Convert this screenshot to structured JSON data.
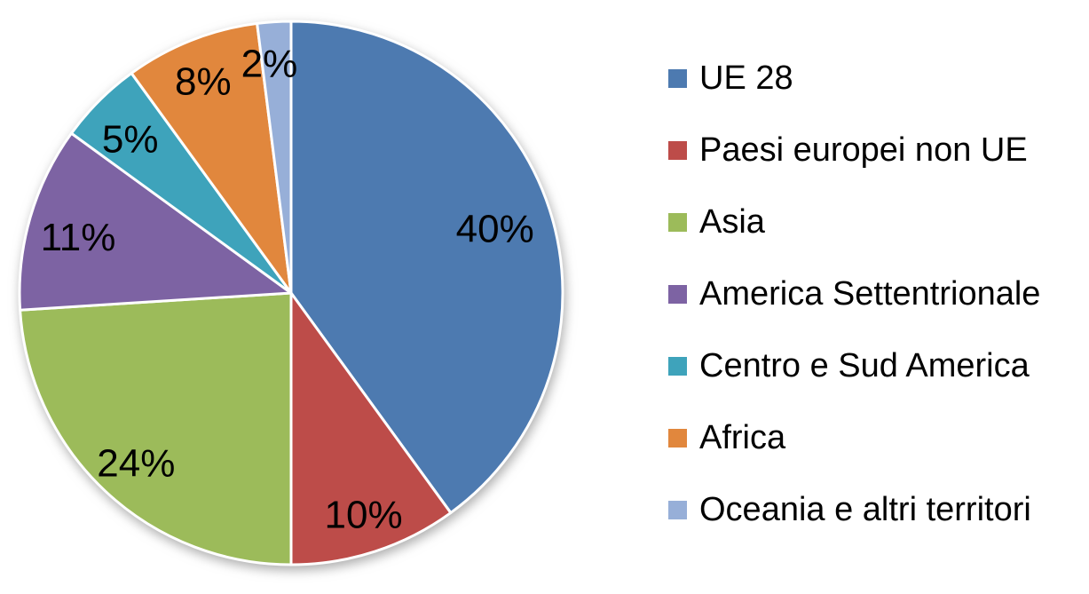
{
  "chart_data": {
    "type": "pie",
    "title": "",
    "categories": [
      "UE 28",
      "Paesi europei non UE",
      "Asia",
      "America Settentrionale",
      "Centro e Sud America",
      "Africa",
      "Oceania e altri territori"
    ],
    "values": [
      40,
      10,
      24,
      11,
      5,
      8,
      2
    ],
    "unit": "%",
    "percent_labels": [
      "40%",
      "10%",
      "24%",
      "11%",
      "5%",
      "8%",
      "2%"
    ],
    "colors": [
      "#4d7ab0",
      "#bd4c49",
      "#9cbb5a",
      "#7d63a3",
      "#3ea3bb",
      "#e1873d",
      "#97afd8"
    ],
    "start_angle_deg": 0,
    "direction": "clockwise",
    "legend_position": "right",
    "label_color": "#000000",
    "slice_border_color": "#ffffff",
    "background_color": "#ffffff"
  }
}
